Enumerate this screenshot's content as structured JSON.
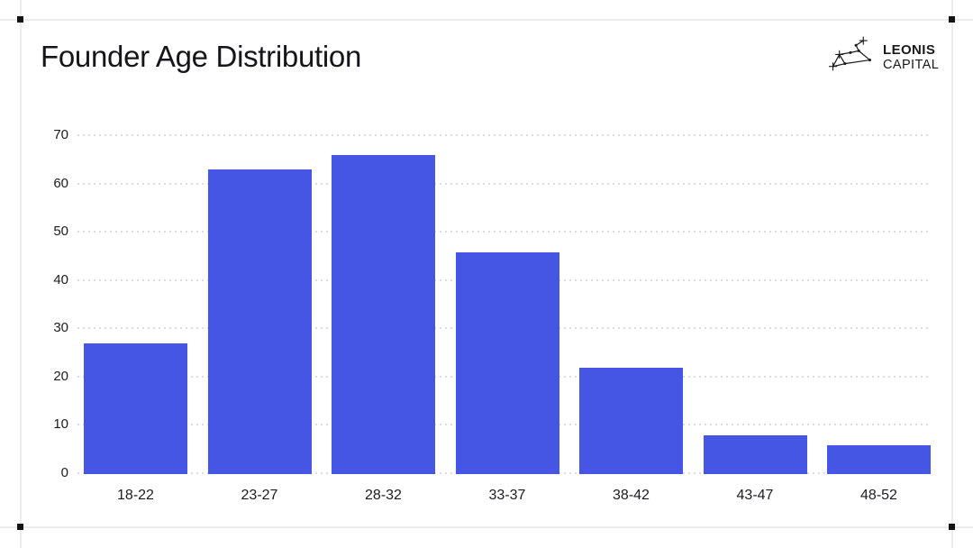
{
  "page": {
    "title": "Founder Age Distribution"
  },
  "logo": {
    "name": "leonis-capital",
    "line1": "LEONIS",
    "line2": "CAPITAL"
  },
  "colors": {
    "background": "#FFFFFF",
    "bar": "#4656E4",
    "title_text": "#15151B",
    "axis_text": "#1B1B22",
    "gridline": "#DCDCE0",
    "frame_line": "#ECECEC",
    "frame_mark": "#141414",
    "logo_ink": "#191919"
  },
  "chart_data": {
    "type": "bar",
    "title": "Founder Age Distribution",
    "categories": [
      "18-22",
      "23-27",
      "28-32",
      "33-37",
      "38-42",
      "43-47",
      "48-52"
    ],
    "values": [
      27,
      63,
      66,
      46,
      22,
      8,
      6
    ],
    "xlabel": "",
    "ylabel": "",
    "ylim": [
      0,
      70
    ],
    "yticks": [
      0,
      10,
      20,
      30,
      40,
      50,
      60,
      70
    ],
    "grid": "horizontal-dotted",
    "legend": "none",
    "bar_color": "#4656E4"
  }
}
